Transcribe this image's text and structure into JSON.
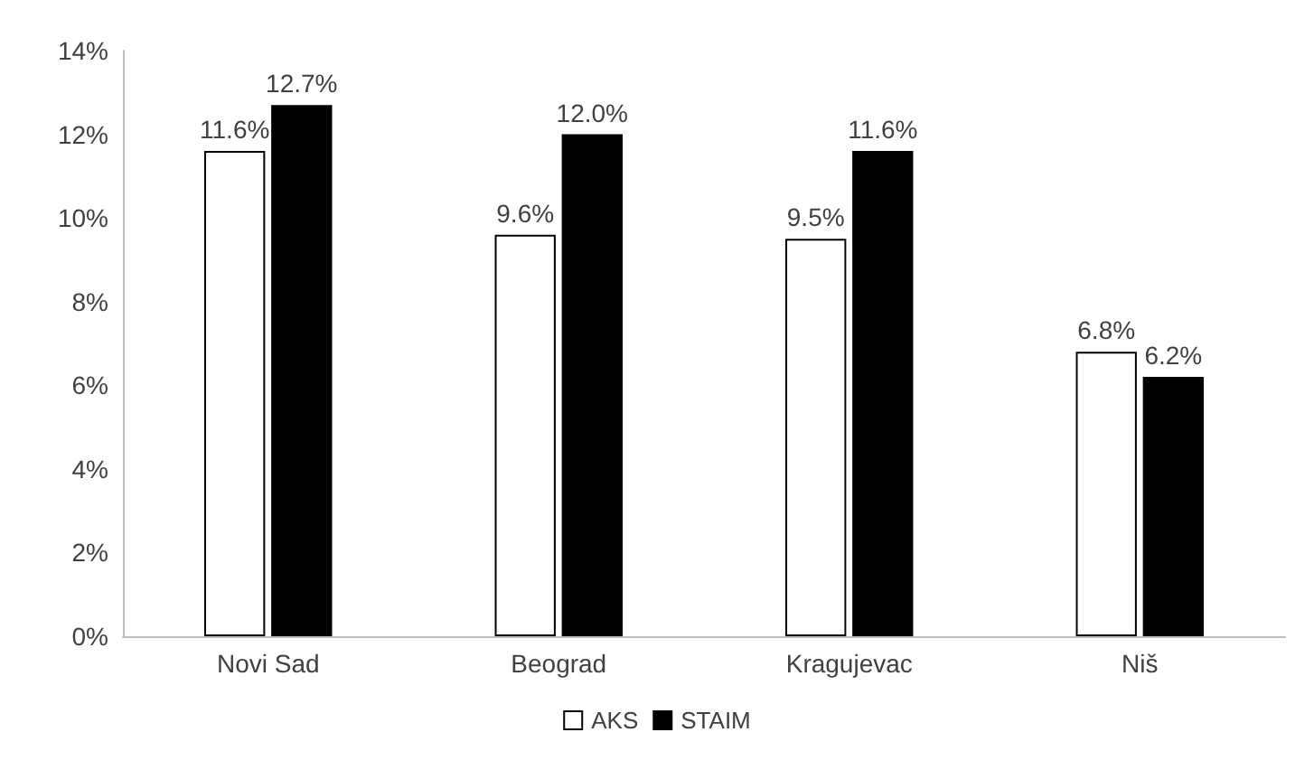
{
  "chart_data": {
    "type": "bar",
    "categories": [
      "Novi Sad",
      "Beograd",
      "Kragujevac",
      "Niš"
    ],
    "series": [
      {
        "name": "AKS",
        "color": "#ffffff",
        "values": [
          11.6,
          9.6,
          9.5,
          6.8
        ],
        "value_labels": [
          "11.6%",
          "9.6%",
          "9.5%",
          "6.8%"
        ]
      },
      {
        "name": "STAIM",
        "color": "#000000",
        "values": [
          12.7,
          12.0,
          11.6,
          6.2
        ],
        "value_labels": [
          "12.7%",
          "12.0%",
          "11.6%",
          "6.2%"
        ]
      }
    ],
    "ylim": [
      0,
      14
    ],
    "yticks": [
      {
        "value": 0,
        "label": "0%"
      },
      {
        "value": 2,
        "label": "2%"
      },
      {
        "value": 4,
        "label": "4%"
      },
      {
        "value": 6,
        "label": "6%"
      },
      {
        "value": 8,
        "label": "8%"
      },
      {
        "value": 10,
        "label": "10%"
      },
      {
        "value": 12,
        "label": "12%"
      },
      {
        "value": 14,
        "label": "14%"
      }
    ],
    "grid": false,
    "legend": "bottom"
  }
}
